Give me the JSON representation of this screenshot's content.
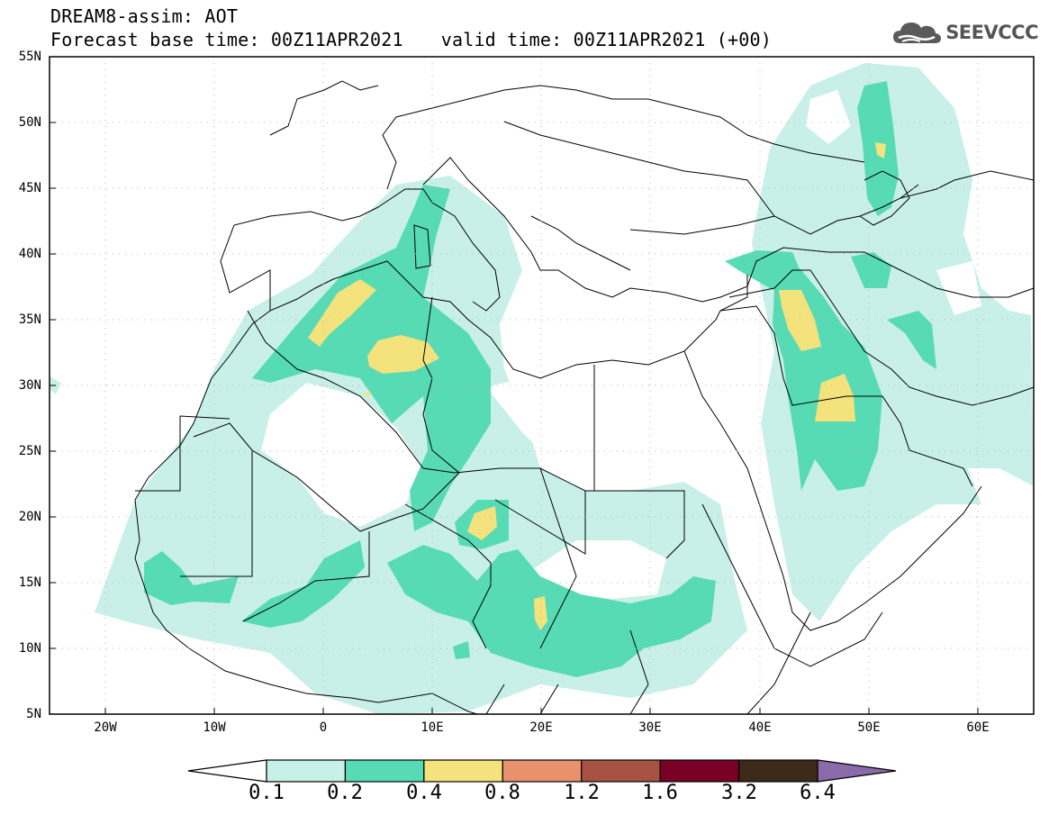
{
  "header": {
    "title": "DREAM8-assim: AOT",
    "base_time": "Forecast base time: 00Z11APR2021",
    "valid_time": "valid time: 00Z11APR2021 (+00)"
  },
  "logo": {
    "text": "SEEVCCC",
    "icon": "cloud-icon",
    "color": "#555555"
  },
  "map": {
    "lat_labels": [
      "55N",
      "50N",
      "45N",
      "40N",
      "35N",
      "30N",
      "25N",
      "20N",
      "15N",
      "10N",
      "5N"
    ],
    "lon_labels": [
      "20W",
      "10W",
      "0",
      "10E",
      "20E",
      "30E",
      "40E",
      "50E",
      "60E"
    ],
    "extent": {
      "lon_min": -25,
      "lon_max": 65,
      "lat_min": 5,
      "lat_max": 55
    }
  },
  "colorbar": {
    "labels": [
      "0.1",
      "0.2",
      "0.4",
      "0.8",
      "1.2",
      "1.6",
      "3.2",
      "6.4"
    ],
    "colors": [
      "#c8f0e8",
      "#57dbb4",
      "#f4e27c",
      "#e9906c",
      "#a85244",
      "#7a0026",
      "#3d2a18",
      "#8a6aa8"
    ],
    "under_color": "#ffffff"
  }
}
